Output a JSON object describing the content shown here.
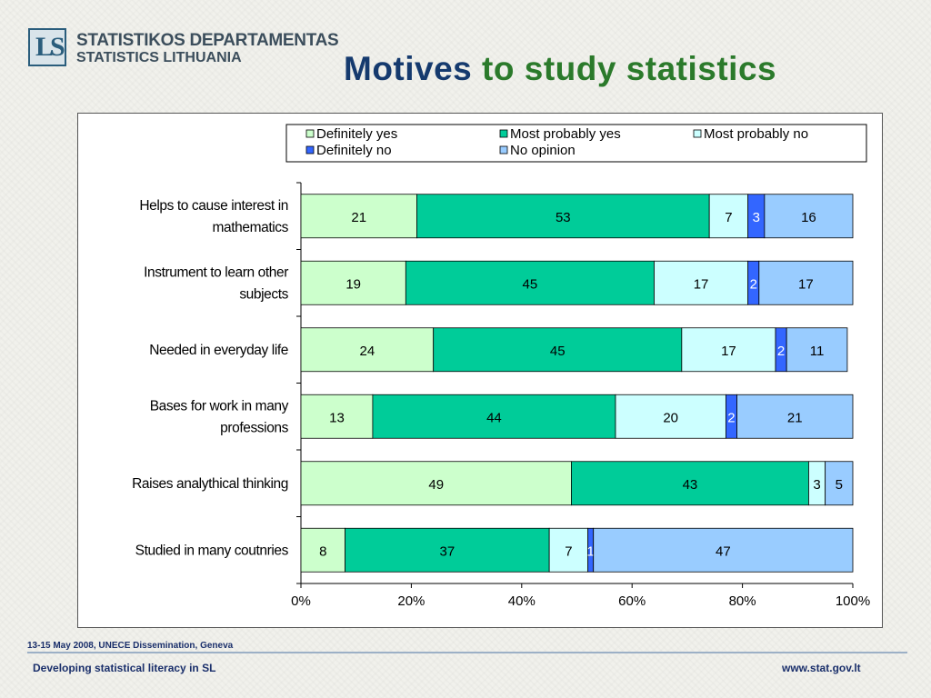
{
  "header": {
    "org_line1": "STATISTIKOS DEPARTAMENTAS",
    "org_line2": "STATISTICS LITHUANIA",
    "logo_letters": "LS",
    "title_part1": "Motives",
    "title_part2": " to study statistics"
  },
  "footer": {
    "date_event": "13-15 May 2008, UNECE Dissemination, Geneva",
    "left_text": "Developing statistical literacy in SL",
    "right_text": "www.stat.gov.lt"
  },
  "chart_data": {
    "type": "bar",
    "orientation": "horizontal",
    "stacked": "percent",
    "categories": [
      [
        "Helps to cause interest in",
        "mathematics"
      ],
      [
        "Instrument to learn other",
        "subjects"
      ],
      [
        "Needed in everyday life"
      ],
      [
        "Bases for work in many",
        "professions"
      ],
      [
        "Raises analythical thinking"
      ],
      [
        "Studied in many coutnries"
      ]
    ],
    "series": [
      {
        "name": "Definitely yes",
        "color": "#ccffcc",
        "values": [
          21,
          19,
          24,
          13,
          49,
          8
        ]
      },
      {
        "name": "Most probably yes",
        "color": "#00cc99",
        "values": [
          53,
          45,
          45,
          44,
          43,
          37
        ]
      },
      {
        "name": "Most probably no",
        "color": "#ccffff",
        "values": [
          7,
          17,
          17,
          20,
          3,
          7
        ]
      },
      {
        "name": "Definitely no",
        "color": "#3366ff",
        "values": [
          3,
          2,
          2,
          2,
          0,
          1
        ]
      },
      {
        "name": "No opinion",
        "color": "#99ccff",
        "values": [
          16,
          17,
          11,
          21,
          5,
          47
        ]
      }
    ],
    "x_ticks": [
      "0%",
      "20%",
      "40%",
      "60%",
      "80%",
      "100%"
    ],
    "xlim": [
      0,
      100
    ],
    "legend_position": "top",
    "grid": false
  }
}
